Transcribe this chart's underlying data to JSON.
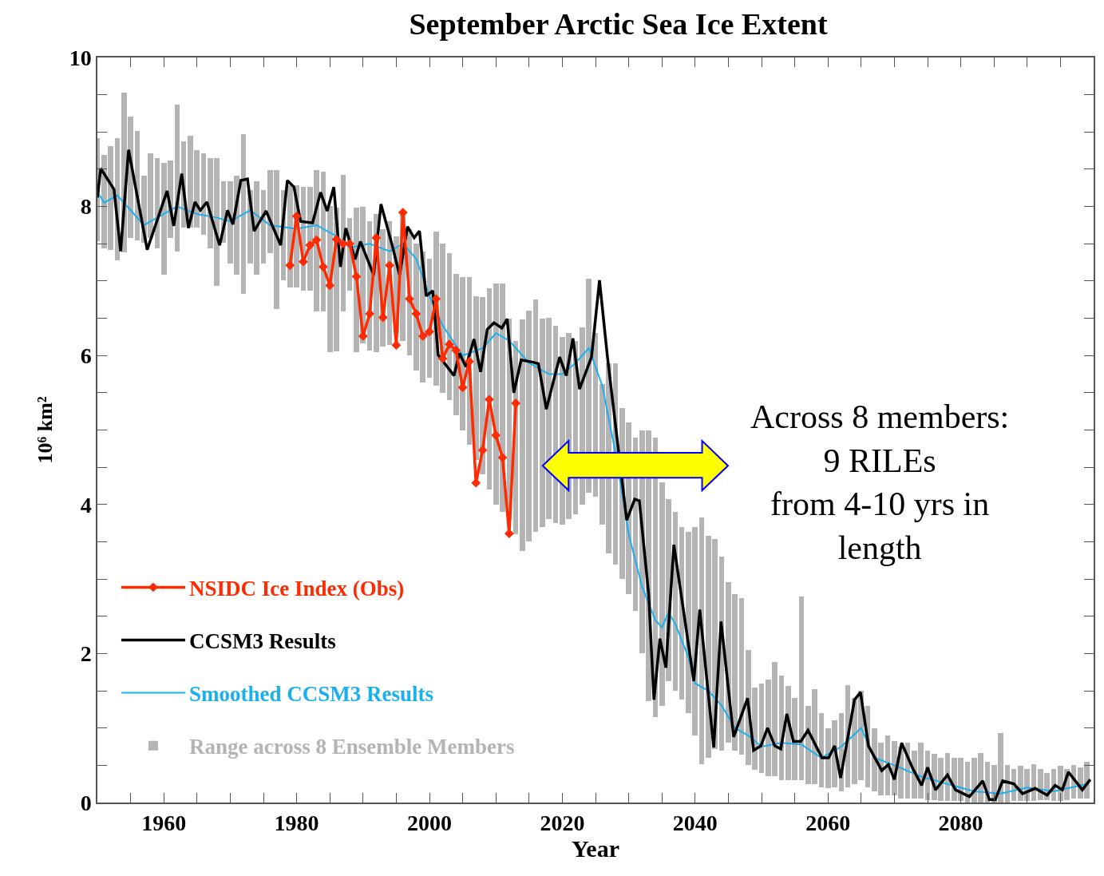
{
  "chart_data": {
    "type": "line",
    "title": "September Arctic Sea Ice Extent",
    "xlabel": "Year",
    "ylabel": "10⁶ km²",
    "xlim": [
      1950,
      2100
    ],
    "ylim": [
      0,
      10
    ],
    "xticks": [
      {
        "value": 1955,
        "label": null
      },
      1960,
      {
        "value": 1965,
        "label": null
      },
      {
        "value": 1970,
        "label": null
      },
      {
        "value": 1975,
        "label": null
      },
      1980,
      {
        "value": 1985,
        "label": null
      },
      {
        "value": 1990,
        "label": null
      },
      {
        "value": 1995,
        "label": null
      },
      2000,
      {
        "value": 2005,
        "label": null
      },
      {
        "value": 2010,
        "label": null
      },
      {
        "value": 2015,
        "label": null
      },
      2020,
      {
        "value": 2025,
        "label": null
      },
      {
        "value": 2030,
        "label": null
      },
      {
        "value": 2035,
        "label": null
      },
      2040,
      {
        "value": 2045,
        "label": null
      },
      {
        "value": 2050,
        "label": null
      },
      {
        "value": 2055,
        "label": null
      },
      2060,
      {
        "value": 2065,
        "label": null
      },
      {
        "value": 2070,
        "label": null
      },
      {
        "value": 2075,
        "label": null
      },
      2080,
      {
        "value": 2085,
        "label": null
      },
      {
        "value": 2090,
        "label": null
      },
      {
        "value": 2095,
        "label": null
      }
    ],
    "yticks": [
      0,
      {
        "value": 0.5,
        "label": null
      },
      {
        "value": 1,
        "label": null
      },
      {
        "value": 1.5,
        "label": null
      },
      2,
      {
        "value": 2.5,
        "label": null
      },
      {
        "value": 3,
        "label": null
      },
      {
        "value": 3.5,
        "label": null
      },
      4,
      {
        "value": 4.5,
        "label": null
      },
      {
        "value": 5,
        "label": null
      },
      {
        "value": 5.5,
        "label": null
      },
      6,
      {
        "value": 6.5,
        "label": null
      },
      {
        "value": 7,
        "label": null
      },
      {
        "value": 7.5,
        "label": null
      },
      8,
      {
        "value": 8.5,
        "label": null
      },
      {
        "value": 9,
        "label": null
      },
      {
        "value": 9.5,
        "label": null
      },
      10
    ],
    "grid": false,
    "legend": "bottom left",
    "annotations": [
      "Across 8 members:\n9 RILEs\nfrom 4-10 yrs in\nlength"
    ],
    "series": [
      {
        "name": "NSIDC Ice Index (Obs)",
        "color": "#ff2a00",
        "marker": "diamond",
        "x": [
          1979,
          1980,
          1981,
          1982,
          1983,
          1984,
          1985,
          1986,
          1987,
          1988,
          1989,
          1990,
          1991,
          1992,
          1993,
          1994,
          1995,
          1996,
          1997,
          1998,
          1999,
          2000,
          2001,
          2002,
          2003,
          2004,
          2005,
          2006,
          2007,
          2008,
          2009,
          2010,
          2011,
          2012,
          2013
        ],
        "values": [
          7.21,
          7.87,
          7.26,
          7.48,
          7.55,
          7.19,
          6.94,
          7.56,
          7.5,
          7.5,
          7.06,
          6.26,
          6.56,
          7.58,
          6.51,
          7.21,
          6.14,
          7.92,
          6.76,
          6.56,
          6.26,
          6.32,
          6.76,
          5.96,
          6.15,
          6.07,
          5.57,
          5.92,
          4.29,
          4.73,
          5.41,
          4.93,
          4.63,
          3.61,
          5.36
        ]
      },
      {
        "name": "CCSM3 Results",
        "color": "#000000",
        "x": [
          1950,
          1950.5,
          1952.5,
          1953.5,
          1954.7,
          1957.5,
          1960.5,
          1961.5,
          1962.7,
          1963.7,
          1964.7,
          1965.5,
          1966.5,
          1968.4,
          1969.6,
          1970.4,
          1971.6,
          1972.6,
          1973.6,
          1975.4,
          1977.6,
          1978.6,
          1979.6,
          1980.6,
          1982.4,
          1983.6,
          1984.6,
          1985.6,
          1986.6,
          1987.4,
          1988.8,
          1989.6,
          1991.6,
          1992.7,
          1994.3,
          1995.5,
          1996.7,
          1997.7,
          1998.5,
          1999.5,
          2000.5,
          2001.3,
          2003.7,
          2004.5,
          2005.5,
          2006.7,
          2007.7,
          2008.7,
          2009.7,
          2010.9,
          2011.7,
          2012.7,
          2013.8,
          2015.6,
          2016.4,
          2017.6,
          2019.6,
          2020.6,
          2021.6,
          2022.6,
          2024.4,
          2025.6,
          2026.8,
          2029.7,
          2030.9,
          2031.6,
          2033,
          2033.8,
          2034.7,
          2035.6,
          2036.8,
          2039.8,
          2040.7,
          2042.8,
          2043.9,
          2045.8,
          2047.9,
          2048.8,
          2049.9,
          2050.9,
          2052,
          2052.9,
          2053.8,
          2054.8,
          2055.9,
          2057,
          2059.1,
          2060.1,
          2061,
          2061.9,
          2064,
          2064.9,
          2066.1,
          2068.1,
          2069.1,
          2070,
          2071.1,
          2072.7,
          2074.1,
          2075,
          2076.2,
          2078,
          2079.2,
          2081.3,
          2083.3,
          2084.3,
          2085.2,
          2086.3,
          2088,
          2089.3,
          2091.2,
          2093,
          2094.2,
          2095.3,
          2096.2,
          2098.3,
          2099.5
        ],
        "values": [
          8.12,
          8.51,
          8.23,
          7.4,
          8.76,
          7.42,
          8.21,
          7.74,
          8.44,
          7.71,
          8.06,
          7.95,
          8.06,
          7.48,
          7.95,
          7.76,
          8.35,
          8.37,
          7.67,
          7.94,
          7.48,
          8.35,
          8.26,
          7.8,
          7.78,
          8.19,
          7.94,
          8.26,
          7.19,
          7.71,
          7.29,
          7.53,
          7.08,
          8.03,
          7.51,
          7.08,
          7.73,
          7.58,
          7.67,
          6.8,
          6.87,
          6.01,
          5.73,
          6.03,
          5.85,
          6.22,
          5.78,
          6.35,
          6.44,
          6.37,
          6.49,
          5.5,
          5.94,
          5.91,
          5.89,
          5.28,
          5.98,
          5.73,
          6.23,
          5.55,
          5.98,
          7.01,
          5.98,
          3.79,
          4.07,
          4.05,
          2.8,
          1.38,
          2.2,
          1.81,
          3.46,
          1.63,
          2.59,
          0.74,
          2.43,
          0.88,
          1.4,
          0.7,
          0.76,
          1.0,
          0.76,
          0.72,
          1.19,
          0.82,
          0.82,
          0.97,
          0.6,
          0.6,
          0.76,
          0.33,
          1.38,
          1.48,
          0.76,
          0.43,
          0.51,
          0.31,
          0.8,
          0.47,
          0.23,
          0.47,
          0.17,
          0.37,
          0.17,
          0.08,
          0.29,
          0.04,
          0.04,
          0.29,
          0.25,
          0.12,
          0.19,
          0.1,
          0.23,
          0.17,
          0.41,
          0.17,
          0.31
        ]
      },
      {
        "name": "Smoothed CCSM3 Results",
        "color": "#1ab0f0",
        "x": [
          1950,
          1951,
          1953,
          1955,
          1957,
          1960,
          1962,
          1965,
          1968,
          1970,
          1973,
          1976,
          1980,
          1983,
          1986,
          1988,
          1991,
          1994,
          1996,
          1998,
          2000,
          2002,
          2005,
          2008,
          2010,
          2012,
          2015,
          2018,
          2020,
          2022,
          2024,
          2026,
          2028,
          2030,
          2032,
          2034,
          2035,
          2036,
          2037,
          2039,
          2040,
          2042,
          2044,
          2046,
          2048,
          2050,
          2053,
          2056,
          2059,
          2062,
          2065,
          2067,
          2070,
          2074,
          2078,
          2082,
          2086,
          2090,
          2094,
          2099
        ],
        "values": [
          8.2,
          8.05,
          8.15,
          7.95,
          7.75,
          7.9,
          8.0,
          7.9,
          7.85,
          7.8,
          7.95,
          7.75,
          7.7,
          7.75,
          7.6,
          7.45,
          7.5,
          7.4,
          7.5,
          7.3,
          6.8,
          6.4,
          6.0,
          6.1,
          6.3,
          6.2,
          5.9,
          5.75,
          5.75,
          5.9,
          6.1,
          5.6,
          4.7,
          3.6,
          2.9,
          2.45,
          2.35,
          2.55,
          2.4,
          1.95,
          1.6,
          1.5,
          1.3,
          1.0,
          0.9,
          0.75,
          0.8,
          0.78,
          0.6,
          0.75,
          1.0,
          0.6,
          0.5,
          0.35,
          0.25,
          0.15,
          0.12,
          0.2,
          0.15,
          0.25
        ]
      },
      {
        "name": "Range across 8 Ensemble Members",
        "type": "bar",
        "color": "#b4b4b4",
        "x": [
          1950,
          1951,
          1952,
          1953,
          1954,
          1955,
          1956,
          1957,
          1958,
          1959,
          1960,
          1961,
          1962,
          1963,
          1964,
          1965,
          1966,
          1967,
          1968,
          1969,
          1970,
          1971,
          1972,
          1973,
          1974,
          1975,
          1976,
          1977,
          1978,
          1979,
          1980,
          1981,
          1982,
          1983,
          1984,
          1985,
          1986,
          1987,
          1988,
          1989,
          1990,
          1991,
          1992,
          1993,
          1994,
          1995,
          1996,
          1997,
          1998,
          1999,
          2000,
          2001,
          2002,
          2003,
          2004,
          2005,
          2006,
          2007,
          2008,
          2009,
          2010,
          2011,
          2012,
          2013,
          2014,
          2015,
          2016,
          2017,
          2018,
          2019,
          2020,
          2021,
          2022,
          2023,
          2024,
          2025,
          2026,
          2027,
          2028,
          2029,
          2030,
          2031,
          2032,
          2033,
          2034,
          2035,
          2036,
          2037,
          2038,
          2039,
          2040,
          2041,
          2042,
          2043,
          2044,
          2045,
          2046,
          2047,
          2048,
          2049,
          2050,
          2051,
          2052,
          2053,
          2054,
          2055,
          2056,
          2057,
          2058,
          2059,
          2060,
          2061,
          2062,
          2063,
          2064,
          2065,
          2066,
          2067,
          2068,
          2069,
          2070,
          2071,
          2072,
          2073,
          2074,
          2075,
          2076,
          2077,
          2078,
          2079,
          2080,
          2081,
          2082,
          2083,
          2084,
          2085,
          2086,
          2087,
          2088,
          2089,
          2090,
          2091,
          2092,
          2093,
          2094,
          2095,
          2096,
          2097,
          2098,
          2099
        ],
        "base": [
          7.53,
          7.44,
          7.42,
          7.28,
          7.39,
          7.58,
          7.55,
          7.51,
          7.58,
          7.44,
          7.08,
          7.58,
          7.4,
          7.72,
          7.72,
          7.72,
          7.62,
          7.44,
          6.94,
          7.51,
          7.23,
          7.08,
          6.83,
          7.23,
          7.08,
          7.23,
          7.37,
          6.62,
          7.01,
          6.91,
          6.91,
          6.87,
          6.87,
          6.59,
          6.59,
          6.05,
          6.06,
          6.59,
          6.87,
          6.05,
          6.16,
          6.07,
          6.05,
          6.12,
          6.14,
          6.3,
          6.2,
          6.0,
          5.8,
          5.64,
          5.7,
          5.6,
          5.5,
          5.4,
          5.2,
          5.0,
          4.8,
          4.6,
          4.4,
          4.2,
          4.0,
          3.9,
          3.8,
          3.6,
          3.38,
          3.5,
          3.63,
          3.7,
          3.8,
          3.75,
          3.73,
          3.8,
          3.87,
          4.0,
          4.16,
          4.1,
          3.73,
          3.34,
          3.19,
          3.0,
          2.8,
          2.57,
          2.0,
          1.36,
          1.15,
          1.3,
          1.63,
          1.5,
          1.38,
          1.2,
          0.9,
          0.51,
          0.6,
          0.72,
          0.7,
          0.8,
          0.7,
          0.64,
          0.5,
          0.44,
          0.4,
          0.35,
          0.35,
          0.3,
          0.3,
          0.3,
          0.3,
          0.25,
          0.25,
          0.2,
          0.19,
          0.2,
          0.15,
          0.2,
          0.25,
          0.3,
          0.2,
          0.15,
          0.1,
          0.1,
          0.1,
          0.05,
          0.05,
          0.05,
          0.05,
          0.03,
          0.03,
          0.02,
          0.02,
          0.02,
          0.02,
          0,
          0,
          0,
          0,
          0,
          0,
          0,
          0.02,
          0.02,
          0.02,
          0.02,
          0.03,
          0.03,
          0.02,
          0.02,
          0.03,
          0.05,
          0.05,
          0.05
        ],
        "values": [
          1.39,
          1.25,
          1.39,
          1.64,
          2.14,
          1.63,
          1.46,
          0.9,
          1.13,
          1.21,
          1.5,
          1.04,
          1.97,
          1.15,
          1.23,
          1.04,
          1.09,
          1.21,
          1.71,
          0.83,
          1.11,
          1.33,
          2.14,
          0.99,
          1.26,
          0.99,
          1.12,
          1.87,
          1.21,
          1.37,
          1.37,
          1.39,
          1.39,
          1.9,
          1.88,
          1.96,
          1.93,
          1.83,
          0.98,
          1.94,
          1.84,
          1.73,
          1.85,
          1.58,
          1.66,
          1.3,
          1.7,
          1.7,
          1.7,
          1.76,
          1.6,
          2.06,
          2.0,
          1.97,
          1.9,
          2.05,
          2.25,
          2.2,
          2.38,
          2.7,
          2.97,
          3.07,
          2.7,
          2.59,
          3.1,
          3.1,
          3.12,
          2.8,
          2.71,
          2.65,
          2.52,
          2.5,
          2.33,
          2.38,
          2.87,
          2.2,
          1.89,
          2.56,
          2.71,
          2.3,
          2.3,
          2.33,
          3.0,
          3.63,
          3.75,
          3.0,
          2.44,
          2.4,
          2.32,
          2.43,
          2.8,
          3.32,
          2.98,
          2.82,
          2.6,
          2.16,
          2.1,
          2.1,
          1.55,
          1.1,
          1.2,
          1.3,
          1.54,
          1.4,
          1.26,
          1.1,
          2.46,
          1.05,
          1.27,
          1.0,
          0.81,
          0.9,
          1.05,
          1.38,
          1.15,
          1.2,
          1.1,
          0.85,
          0.7,
          0.8,
          0.72,
          0.7,
          0.75,
          0.65,
          0.75,
          0.67,
          0.62,
          0.58,
          0.64,
          0.58,
          0.58,
          0.55,
          0.6,
          0.66,
          0.55,
          0.5,
          0.93,
          0.5,
          0.43,
          0.47,
          0.43,
          0.49,
          0.42,
          0.37,
          0.43,
          0.47,
          0.42,
          0.45,
          0.42,
          0.5
        ]
      }
    ]
  }
}
